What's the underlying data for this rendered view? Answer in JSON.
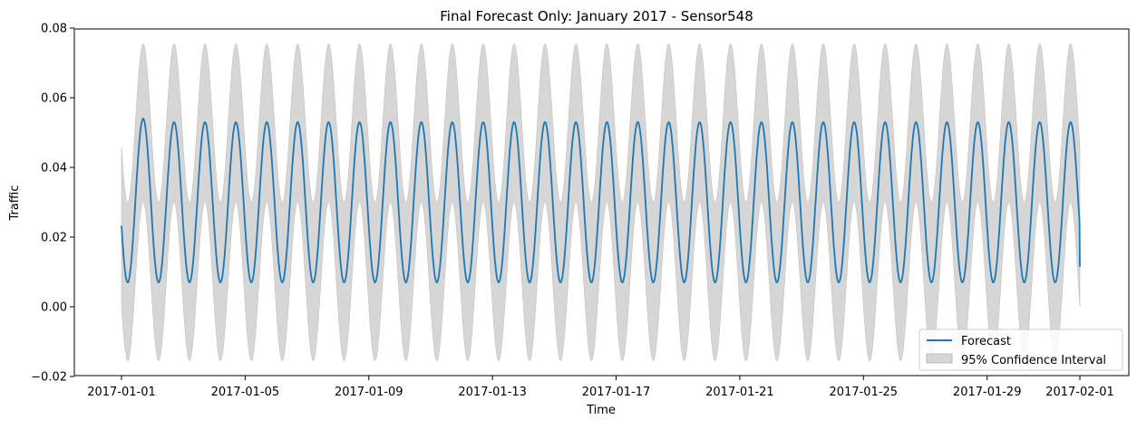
{
  "chart_data": {
    "type": "line",
    "title": "Final Forecast Only: January 2017 - Sensor548",
    "xlabel": "Time",
    "ylabel": "Traffic",
    "x_range": [
      "2017-01-01",
      "2017-02-01"
    ],
    "ylim": [
      -0.02,
      0.08
    ],
    "x_ticks": [
      "2017-01-01",
      "2017-01-05",
      "2017-01-09",
      "2017-01-13",
      "2017-01-17",
      "2017-01-21",
      "2017-01-25",
      "2017-01-29",
      "2017-02-01"
    ],
    "y_ticks": [
      "−0.02",
      "0.00",
      "0.02",
      "0.04",
      "0.06",
      "0.08"
    ],
    "grid": false,
    "legend_position": "lower-right",
    "series": [
      {
        "name": "Forecast",
        "color": "#1f77b4",
        "pattern": "daily",
        "points_per_day": 24,
        "start": "2017-01-01T00:00",
        "end": "2017-02-01T00:00",
        "daily_min": 0.007,
        "daily_max": 0.053,
        "first_day_max": 0.054,
        "start_value": 0.01,
        "end_value": 0.0115
      },
      {
        "name": "95% Confidence Interval",
        "color": "#c8c8c8",
        "kind": "band",
        "lower_min": -0.0155,
        "lower_max": 0.03,
        "upper_min": 0.03,
        "upper_max": 0.0755
      }
    ]
  }
}
